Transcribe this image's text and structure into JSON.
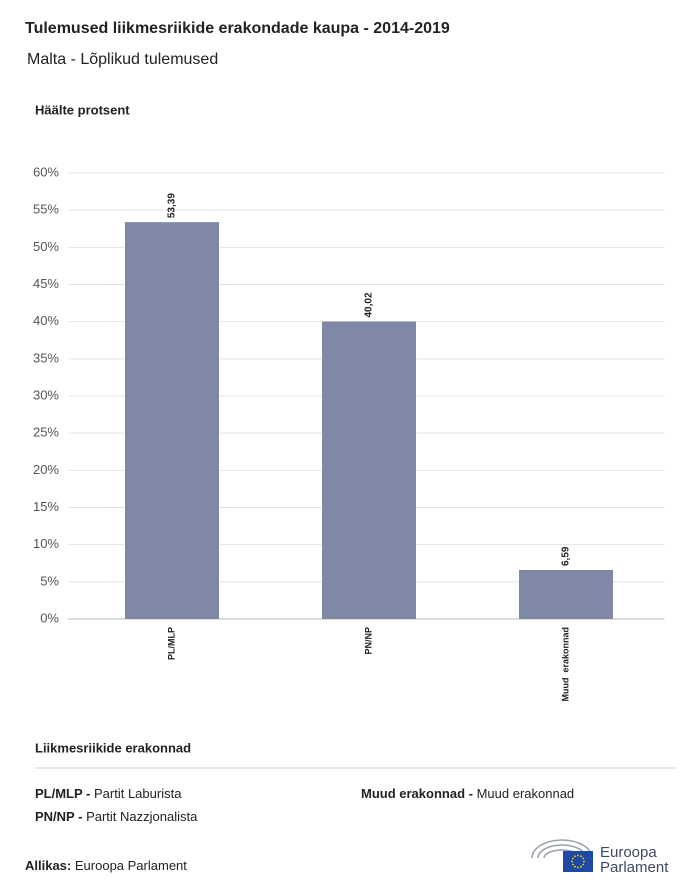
{
  "chart_data": {
    "type": "bar",
    "title": "Tulemused liikmesriikide erakondade kaupa - 2014-2019",
    "subtitle": "Malta - Lõplikud tulemused",
    "y_label": "Häälte protsent",
    "categories": [
      "PL/MLP",
      "PN/NP",
      "Muud  erakonnad"
    ],
    "values": [
      53.39,
      40.02,
      6.59
    ],
    "value_labels": [
      "53,39",
      "40,02",
      "6,59"
    ],
    "color": "#7f89a6",
    "ylim": [
      0,
      60
    ],
    "yticks": [
      {
        "value": 0,
        "label": "0%"
      },
      {
        "value": 5,
        "label": "5%"
      },
      {
        "value": 10,
        "label": "10%"
      },
      {
        "value": 15,
        "label": "15%"
      },
      {
        "value": 20,
        "label": "20%"
      },
      {
        "value": 25,
        "label": "25%"
      },
      {
        "value": 30,
        "label": "30%"
      },
      {
        "value": 35,
        "label": "35%"
      },
      {
        "value": 40,
        "label": "40%"
      },
      {
        "value": 45,
        "label": "45%"
      },
      {
        "value": 50,
        "label": "50%"
      },
      {
        "value": 55,
        "label": "55%"
      },
      {
        "value": 60,
        "label": "60%"
      }
    ],
    "grid": true
  },
  "legend": {
    "title": "Liikmesriikide erakonnad",
    "items": [
      {
        "abbr": "PL/MLP -",
        "name": "Partit Laburista"
      },
      {
        "abbr": "Muud erakonnad -",
        "name": "Muud erakonnad"
      },
      {
        "abbr": "PN/NP -",
        "name": "Partit Nazzjonalista"
      }
    ]
  },
  "source": {
    "label": "Allikas:",
    "text": "Euroopa Parlament"
  },
  "logo": {
    "line1": "Euroopa",
    "line2": "Parlament"
  }
}
